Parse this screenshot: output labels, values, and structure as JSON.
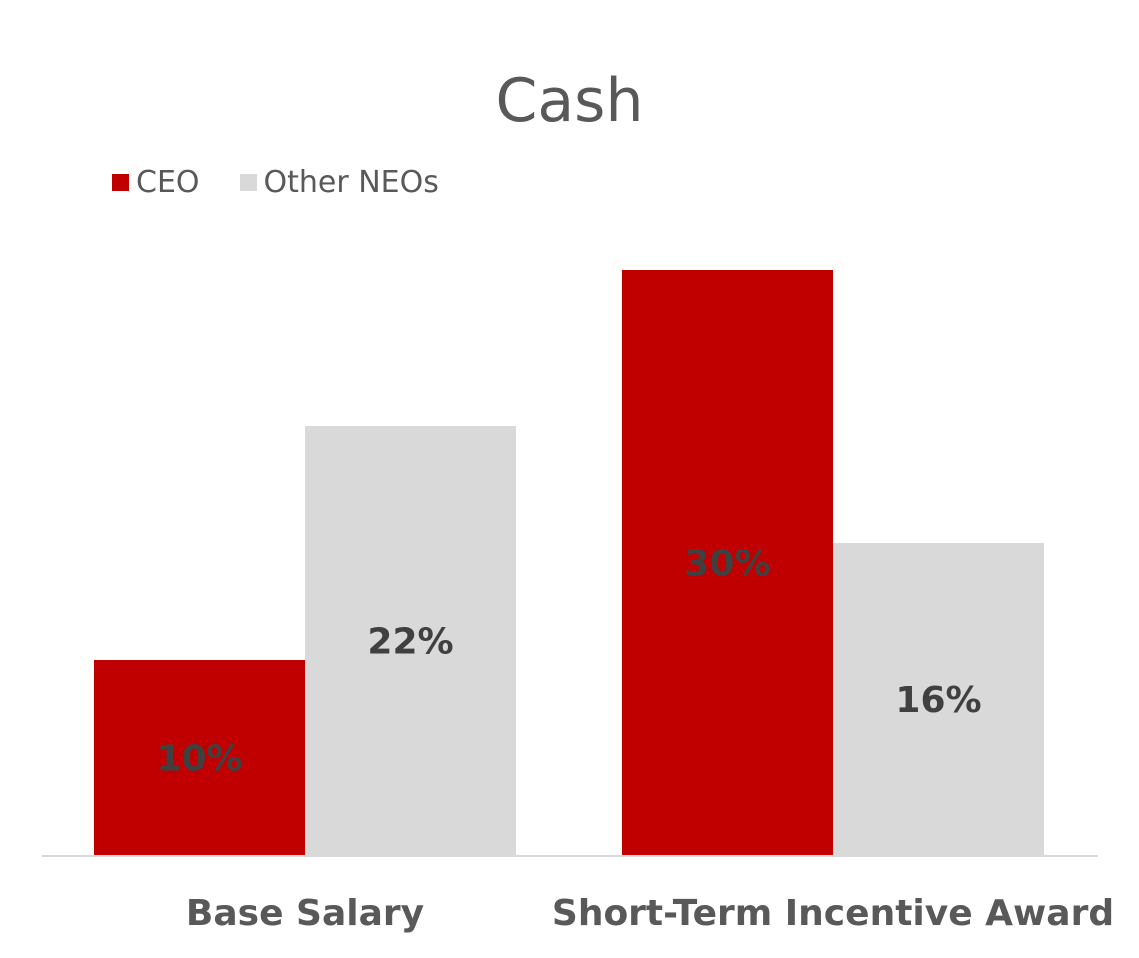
{
  "chart_data": {
    "type": "bar",
    "title": "Cash",
    "categories": [
      "Base Salary",
      "Short-Term Incentive Award"
    ],
    "series": [
      {
        "name": "CEO",
        "values": [
          10,
          30
        ],
        "labels": [
          "10%",
          "30%"
        ],
        "color": "#C00000"
      },
      {
        "name": "Other NEOs",
        "values": [
          22,
          16
        ],
        "labels": [
          "22%",
          "16%"
        ],
        "color": "#D9D9D9"
      }
    ],
    "ylim": [
      0,
      32
    ],
    "grid": false,
    "legend_position": "top-left",
    "xlabel": "",
    "ylabel": ""
  }
}
